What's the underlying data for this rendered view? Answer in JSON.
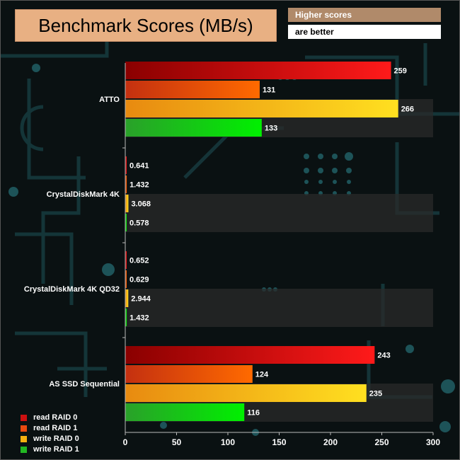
{
  "header": {
    "title": "Benchmark Scores (MB/s)",
    "note_line1": "Higher scores",
    "note_line2": "are better"
  },
  "colors": {
    "background": "#0a1112",
    "circuit": "#1a4a50",
    "band": "#2a2a2a",
    "series": [
      "#cc1010",
      "#e84a10",
      "#f5b010",
      "#22b822"
    ]
  },
  "chart_data": {
    "type": "bar",
    "orientation": "horizontal",
    "title": "Benchmark Scores (MB/s)",
    "categories": [
      "ATTO",
      "CrystalDiskMark 4K",
      "CrystalDiskMark 4K QD32",
      "AS SSD Sequential"
    ],
    "series": [
      {
        "name": "read RAID 0",
        "values": [
          259,
          0.641,
          0.652,
          243
        ]
      },
      {
        "name": "read RAID 1",
        "values": [
          131,
          1.432,
          0.629,
          124
        ]
      },
      {
        "name": "write RAID 0",
        "values": [
          266,
          3.068,
          2.944,
          235
        ]
      },
      {
        "name": "write RAID 1",
        "values": [
          133,
          0.578,
          1.432,
          116
        ]
      }
    ],
    "value_labels": [
      [
        "259",
        "0.641",
        "0.652",
        "243"
      ],
      [
        "131",
        "1.432",
        "0.629",
        "124"
      ],
      [
        "266",
        "3.068",
        "2.944",
        "235"
      ],
      [
        "133",
        "0.578",
        "1.432",
        "116"
      ]
    ],
    "xlim": [
      0,
      300
    ],
    "x_ticks": [
      "0",
      "50",
      "100",
      "150",
      "200",
      "250",
      "300"
    ],
    "legend_position": "bottom-left",
    "grid": false
  }
}
